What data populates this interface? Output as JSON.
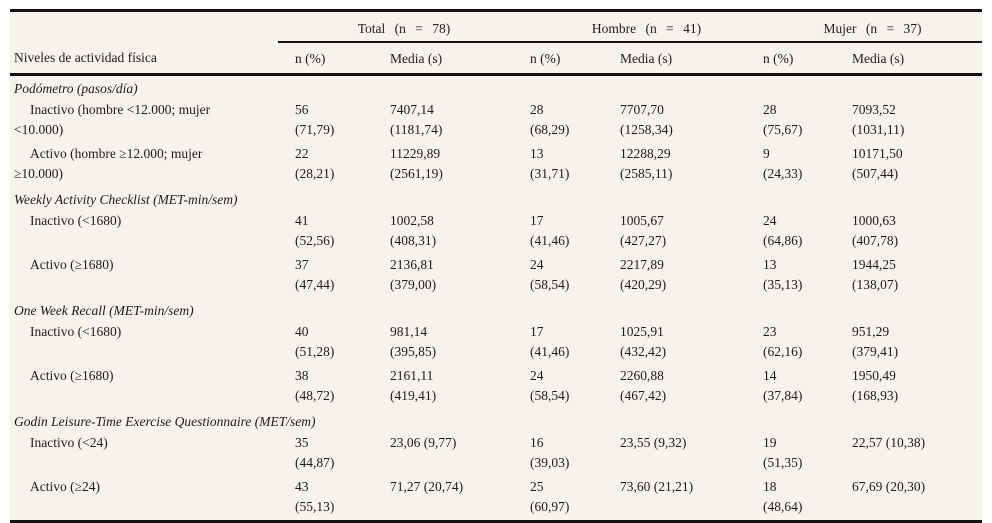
{
  "table": {
    "stub_header": "Niveles de actividad física",
    "groups": [
      {
        "label": "Total (n = 78)"
      },
      {
        "label": "Hombre (n = 41)"
      },
      {
        "label": "Mujer (n = 37)"
      }
    ],
    "subheaders": [
      "n (%)",
      "Media (s)"
    ],
    "sections": [
      {
        "title": "Podómetro (pasos/día)",
        "rows": [
          {
            "label_lines": [
              "Inactivo (hombre <12.000; mujer",
              "<10.000)"
            ],
            "cells": [
              [
                "56",
                "(71,79)"
              ],
              [
                "7407,14",
                "(1181,74)"
              ],
              [
                "28",
                "(68,29)"
              ],
              [
                "7707,70",
                "(1258,34)"
              ],
              [
                "28",
                "(75,67)"
              ],
              [
                "7093,52",
                "(1031,11)"
              ]
            ]
          },
          {
            "label_lines": [
              "Activo (hombre ≥12.000; mujer",
              "≥10.000)"
            ],
            "cells": [
              [
                "22",
                "(28,21)"
              ],
              [
                "11229,89",
                "(2561,19)"
              ],
              [
                "13",
                "(31,71)"
              ],
              [
                "12288,29",
                "(2585,11)"
              ],
              [
                "9",
                "(24,33)"
              ],
              [
                "10171,50",
                "(507,44)"
              ]
            ]
          }
        ]
      },
      {
        "title": "Weekly Activity Checklist (MET-min/sem)",
        "rows": [
          {
            "label_lines": [
              "Inactivo (<1680)"
            ],
            "cells": [
              [
                "41",
                "(52,56)"
              ],
              [
                "1002,58",
                "(408,31)"
              ],
              [
                "17",
                "(41,46)"
              ],
              [
                "1005,67",
                "(427,27)"
              ],
              [
                "24",
                "(64,86)"
              ],
              [
                "1000,63",
                "(407,78)"
              ]
            ]
          },
          {
            "label_lines": [
              "Activo (≥1680)"
            ],
            "cells": [
              [
                "37",
                "(47,44)"
              ],
              [
                "2136,81",
                "(379,00)"
              ],
              [
                "24",
                "(58,54)"
              ],
              [
                "2217,89",
                "(420,29)"
              ],
              [
                "13",
                "(35,13)"
              ],
              [
                "1944,25",
                "(138,07)"
              ]
            ]
          }
        ]
      },
      {
        "title": "One Week Recall (MET-min/sem)",
        "rows": [
          {
            "label_lines": [
              "Inactivo (<1680)"
            ],
            "cells": [
              [
                "40",
                "(51,28)"
              ],
              [
                "981,14",
                "(395,85)"
              ],
              [
                "17",
                "(41,46)"
              ],
              [
                "1025,91",
                "(432,42)"
              ],
              [
                "23",
                "(62,16)"
              ],
              [
                "951,29",
                "(379,41)"
              ]
            ]
          },
          {
            "label_lines": [
              "Activo (≥1680)"
            ],
            "cells": [
              [
                "38",
                "(48,72)"
              ],
              [
                "2161,11",
                "(419,41)"
              ],
              [
                "24",
                "(58,54)"
              ],
              [
                "2260,88",
                "(467,42)"
              ],
              [
                "14",
                "(37,84)"
              ],
              [
                "1950,49",
                "(168,93)"
              ]
            ]
          }
        ]
      },
      {
        "title": "Godin Leisure-Time Exercise Questionnaire (MET/sem)",
        "rows": [
          {
            "label_lines": [
              "Inactivo (<24)"
            ],
            "cells": [
              [
                "35",
                "(44,87)"
              ],
              [
                "23,06 (9,77)"
              ],
              [
                "16",
                "(39,03)"
              ],
              [
                "23,55 (9,32)"
              ],
              [
                "19",
                "(51,35)"
              ],
              [
                "22,57 (10,38)"
              ]
            ]
          },
          {
            "label_lines": [
              "Activo (≥24)"
            ],
            "cells": [
              [
                "43",
                "(55,13)"
              ],
              [
                "71,27 (20,74)"
              ],
              [
                "25",
                "(60,97)"
              ],
              [
                "73,60 (21,21)"
              ],
              [
                "18",
                "(48,64)"
              ],
              [
                "67,69 (20,30)"
              ]
            ]
          }
        ]
      }
    ]
  },
  "colors": {
    "table_background": "#f7f3ec",
    "rule": "#141414",
    "text": "#1c1c1c"
  }
}
